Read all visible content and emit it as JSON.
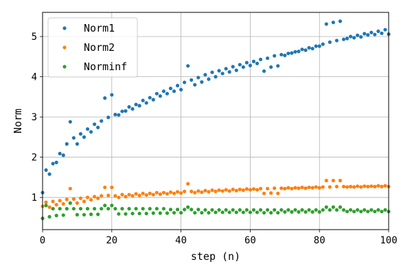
{
  "chart_data": {
    "type": "scatter",
    "xlabel": "step (n)",
    "ylabel": "Norm",
    "xlim": [
      0,
      100
    ],
    "ylim": [
      0.2,
      5.6
    ],
    "xticks": [
      0,
      20,
      40,
      60,
      80,
      100
    ],
    "yticks": [
      1,
      2,
      3,
      4,
      5
    ],
    "grid": true,
    "legend_position": "top-left",
    "series": [
      {
        "name": "Norm1",
        "color": "#1f77b4",
        "x": [
          0,
          1,
          2,
          3,
          4,
          5,
          6,
          7,
          8,
          9,
          10,
          11,
          12,
          13,
          14,
          15,
          16,
          17,
          18,
          19,
          20,
          21,
          22,
          23,
          24,
          25,
          26,
          27,
          28,
          29,
          30,
          31,
          32,
          33,
          34,
          35,
          36,
          37,
          38,
          39,
          40,
          41,
          42,
          43,
          44,
          45,
          46,
          47,
          48,
          49,
          50,
          51,
          52,
          53,
          54,
          55,
          56,
          57,
          58,
          59,
          60,
          61,
          62,
          63,
          64,
          65,
          66,
          67,
          68,
          69,
          70,
          71,
          72,
          73,
          74,
          75,
          76,
          77,
          78,
          79,
          80,
          81,
          82,
          83,
          84,
          85,
          86,
          87,
          88,
          89,
          90,
          91,
          92,
          93,
          94,
          95,
          96,
          97,
          98,
          99,
          100
        ],
        "y": [
          1.12,
          1.68,
          1.58,
          1.84,
          1.87,
          2.09,
          2.05,
          2.33,
          2.88,
          2.48,
          2.33,
          2.58,
          2.5,
          2.7,
          2.63,
          2.82,
          2.74,
          2.9,
          3.47,
          2.99,
          3.55,
          3.06,
          3.05,
          3.14,
          3.15,
          3.25,
          3.2,
          3.31,
          3.28,
          3.41,
          3.35,
          3.48,
          3.43,
          3.58,
          3.52,
          3.64,
          3.58,
          3.71,
          3.64,
          3.78,
          3.68,
          3.86,
          4.27,
          3.92,
          3.8,
          3.98,
          3.87,
          4.05,
          3.94,
          4.11,
          4.0,
          4.15,
          4.08,
          4.2,
          4.12,
          4.25,
          4.16,
          4.3,
          4.24,
          4.35,
          4.28,
          4.38,
          4.33,
          4.43,
          4.14,
          4.46,
          4.24,
          4.52,
          4.27,
          4.55,
          4.53,
          4.58,
          4.59,
          4.62,
          4.63,
          4.68,
          4.66,
          4.72,
          4.7,
          4.76,
          4.76,
          4.81,
          5.31,
          4.86,
          5.35,
          4.9,
          5.38,
          4.93,
          4.95,
          5.0,
          4.97,
          5.03,
          4.99,
          5.07,
          5.04,
          5.1,
          5.05,
          5.13,
          5.08,
          5.17,
          5.06
        ]
      },
      {
        "name": "Norm2",
        "color": "#ff7f0e",
        "x": [
          0,
          1,
          2,
          3,
          4,
          5,
          6,
          7,
          8,
          9,
          10,
          11,
          12,
          13,
          14,
          15,
          16,
          17,
          18,
          19,
          20,
          21,
          22,
          23,
          24,
          25,
          26,
          27,
          28,
          29,
          30,
          31,
          32,
          33,
          34,
          35,
          36,
          37,
          38,
          39,
          40,
          41,
          42,
          43,
          44,
          45,
          46,
          47,
          48,
          49,
          50,
          51,
          52,
          53,
          54,
          55,
          56,
          57,
          58,
          59,
          60,
          61,
          62,
          63,
          64,
          65,
          66,
          67,
          68,
          69,
          70,
          71,
          72,
          73,
          74,
          75,
          76,
          77,
          78,
          79,
          80,
          81,
          82,
          83,
          84,
          85,
          86,
          87,
          88,
          89,
          90,
          91,
          92,
          93,
          94,
          95,
          96,
          97,
          98,
          99,
          100
        ],
        "y": [
          0.78,
          0.88,
          0.76,
          0.9,
          0.82,
          0.92,
          0.84,
          0.95,
          1.22,
          0.96,
          0.86,
          0.98,
          0.9,
          1.0,
          0.94,
          1.02,
          0.98,
          1.04,
          1.25,
          1.05,
          1.25,
          1.04,
          1.0,
          1.07,
          1.02,
          1.07,
          1.04,
          1.09,
          1.05,
          1.1,
          1.06,
          1.1,
          1.07,
          1.12,
          1.08,
          1.12,
          1.09,
          1.13,
          1.1,
          1.14,
          1.11,
          1.15,
          1.34,
          1.15,
          1.12,
          1.16,
          1.13,
          1.17,
          1.14,
          1.18,
          1.15,
          1.18,
          1.16,
          1.19,
          1.16,
          1.2,
          1.17,
          1.2,
          1.18,
          1.21,
          1.19,
          1.21,
          1.19,
          1.22,
          1.1,
          1.22,
          1.11,
          1.23,
          1.1,
          1.23,
          1.22,
          1.24,
          1.22,
          1.24,
          1.23,
          1.25,
          1.23,
          1.25,
          1.24,
          1.26,
          1.24,
          1.26,
          1.42,
          1.26,
          1.42,
          1.27,
          1.42,
          1.27,
          1.26,
          1.27,
          1.26,
          1.28,
          1.26,
          1.28,
          1.27,
          1.28,
          1.27,
          1.29,
          1.27,
          1.29,
          1.27
        ]
      },
      {
        "name": "Norminf",
        "color": "#2ca02c",
        "x": [
          0,
          1,
          2,
          3,
          4,
          5,
          6,
          7,
          8,
          9,
          10,
          11,
          12,
          13,
          14,
          15,
          16,
          17,
          18,
          19,
          20,
          21,
          22,
          23,
          24,
          25,
          26,
          27,
          28,
          29,
          30,
          31,
          32,
          33,
          34,
          35,
          36,
          37,
          38,
          39,
          40,
          41,
          42,
          43,
          44,
          45,
          46,
          47,
          48,
          49,
          50,
          51,
          52,
          53,
          54,
          55,
          56,
          57,
          58,
          59,
          60,
          61,
          62,
          63,
          64,
          65,
          66,
          67,
          68,
          69,
          70,
          71,
          72,
          73,
          74,
          75,
          76,
          77,
          78,
          79,
          80,
          81,
          82,
          83,
          84,
          85,
          86,
          87,
          88,
          89,
          90,
          91,
          92,
          93,
          94,
          95,
          96,
          97,
          98,
          99,
          100
        ],
        "y": [
          0.48,
          0.8,
          0.52,
          0.72,
          0.55,
          0.72,
          0.56,
          0.72,
          0.86,
          0.72,
          0.57,
          0.72,
          0.57,
          0.72,
          0.58,
          0.72,
          0.58,
          0.72,
          0.8,
          0.72,
          0.8,
          0.72,
          0.59,
          0.72,
          0.59,
          0.72,
          0.6,
          0.72,
          0.6,
          0.72,
          0.6,
          0.72,
          0.61,
          0.72,
          0.61,
          0.72,
          0.61,
          0.7,
          0.62,
          0.7,
          0.62,
          0.7,
          0.76,
          0.7,
          0.62,
          0.7,
          0.62,
          0.69,
          0.62,
          0.69,
          0.63,
          0.69,
          0.63,
          0.69,
          0.63,
          0.69,
          0.63,
          0.69,
          0.63,
          0.69,
          0.63,
          0.69,
          0.63,
          0.69,
          0.62,
          0.69,
          0.62,
          0.69,
          0.62,
          0.69,
          0.64,
          0.69,
          0.64,
          0.69,
          0.64,
          0.69,
          0.64,
          0.69,
          0.64,
          0.69,
          0.64,
          0.69,
          0.76,
          0.69,
          0.76,
          0.69,
          0.76,
          0.69,
          0.65,
          0.69,
          0.65,
          0.69,
          0.65,
          0.69,
          0.65,
          0.69,
          0.65,
          0.69,
          0.65,
          0.69,
          0.65
        ]
      }
    ]
  }
}
